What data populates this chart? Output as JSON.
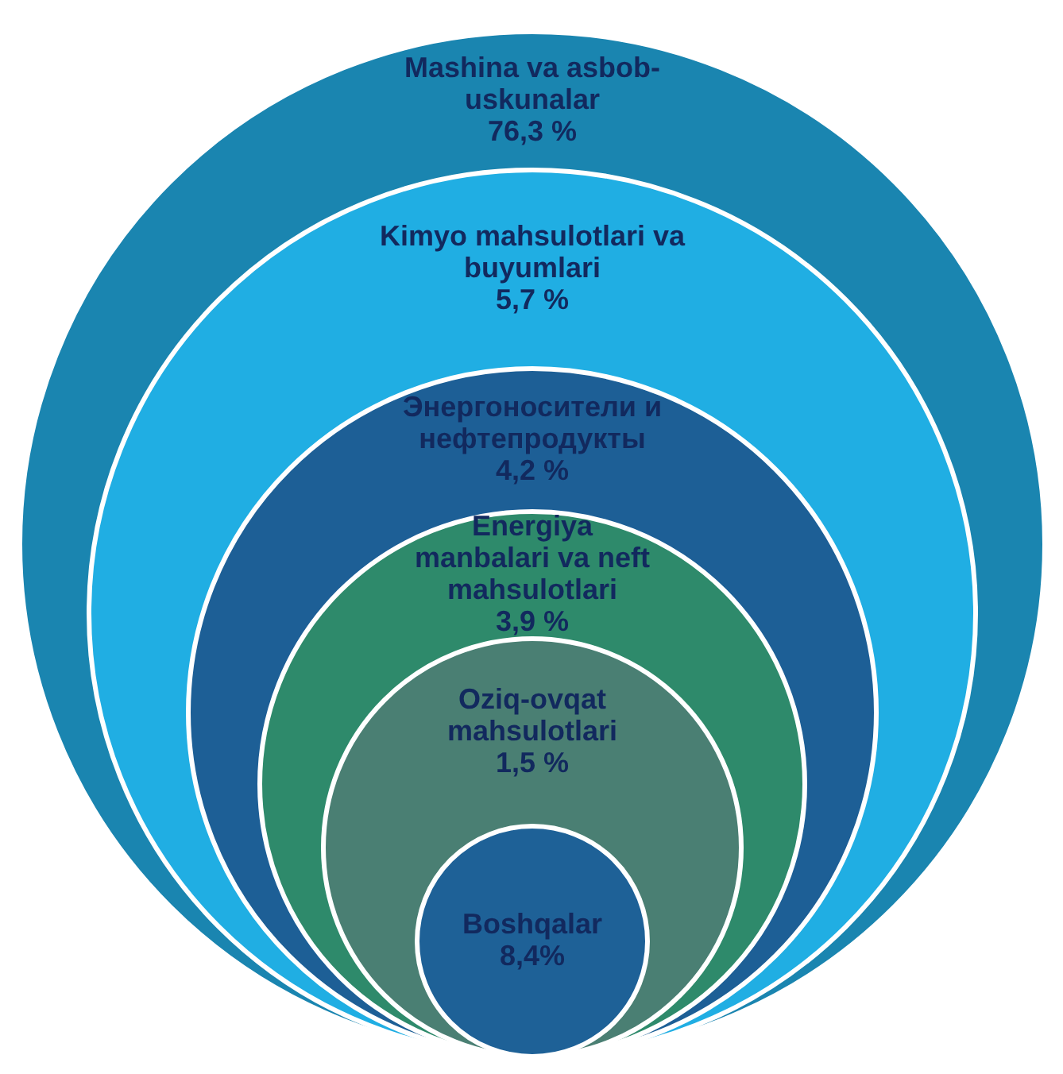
{
  "chart_data": {
    "type": "other",
    "categories": [
      "Mashina va asbob-uskunalar",
      "Kimyo mahsulotlari va buyumlari",
      "Энергоносители и нефтепродукты",
      "Energiya manbalari va neft mahsulotlari",
      "Oziq-ovqat mahsulotlari",
      "Boshqalar"
    ],
    "values": [
      76.3,
      5.7,
      4.2,
      3.9,
      1.5,
      8.4
    ],
    "value_labels": [
      "76,3 %",
      "5,7 %",
      "4,2 %",
      "3,9 %",
      "1,5 %",
      "8,4%"
    ],
    "colors": [
      "#1a85b0",
      "#20aee3",
      "#1d5f96",
      "#2e8a6b",
      "#4a7f73",
      "#1e6197"
    ]
  }
}
